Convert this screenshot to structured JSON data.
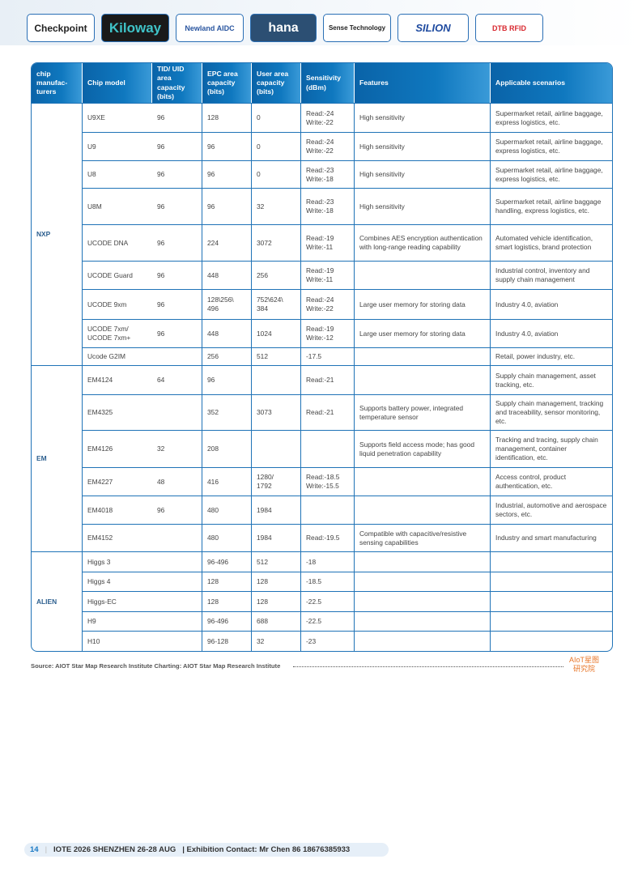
{
  "logos": [
    {
      "name": "Checkpoint",
      "bg": "#ffffff",
      "color": "#222222"
    },
    {
      "name": "Kiloway",
      "bg": "#1a1a1a",
      "color": "#3fc3c8"
    },
    {
      "name": "Newland AIDC",
      "bg": "#ffffff",
      "color": "#2a56a0"
    },
    {
      "name": "hana",
      "bg": "#2c4f73",
      "color": "#ffffff"
    },
    {
      "name": "Sense Technology",
      "bg": "#ffffff",
      "color": "#222222"
    },
    {
      "name": "SILION",
      "bg": "#ffffff",
      "color": "#1f4ba0"
    },
    {
      "name": "DTB RFID",
      "bg": "#ffffff",
      "color": "#d8282f"
    }
  ],
  "table": {
    "headers": [
      "chip manufac-turers",
      "Chip model",
      "TID/ UID area capacity (bits)",
      "EPC area capacity (bits)",
      "User area capacity (bits)",
      "Sensitivity (dBm)",
      "Features",
      "Applicable scenarios"
    ],
    "groups": [
      {
        "manufacturer": "NXP",
        "rows": [
          [
            "U9XE",
            "96",
            "128",
            "0",
            "Read:-24\nWrite:-22",
            "High sensitivity",
            "Supermarket retail, airline baggage, express logistics, etc."
          ],
          [
            "U9",
            "96",
            "96",
            "0",
            "Read:-24\nWrite:-22",
            "High sensitivity",
            "Supermarket retail, airline baggage, express logistics, etc."
          ],
          [
            "U8",
            "96",
            "96",
            "0",
            "Read:-23\nWrite:-18",
            "High sensitivity",
            "Supermarket retail, airline baggage, express logistics, etc."
          ],
          [
            "U8M",
            "96",
            "96",
            "32",
            "Read:-23\nWrite:-18",
            "High sensitivity",
            "Supermarket retail, airline baggage handling, express logistics, etc."
          ],
          [
            "UCODE DNA",
            "96",
            "224",
            "3072",
            "Read:-19\nWrite:-11",
            "Combines AES encryption authentication with long-range reading capability",
            "Automated vehicle identification, smart logistics, brand protection"
          ],
          [
            "UCODE  Guard",
            "96",
            "448",
            "256",
            "Read:-19\nWrite:-11",
            "",
            "Industrial control, inventory and supply chain management"
          ],
          [
            "UCODE 9xm",
            "96",
            "128\\256\\ 496",
            "752\\624\\ 384",
            "Read:-24\nWrite:-22",
            "Large user memory for storing data",
            "Industry 4.0, aviation"
          ],
          [
            "UCODE 7xm/\nUCODE 7xm+",
            "96",
            "448",
            "1024",
            "Read:-19\nWrite:-12",
            "Large user memory for storing data",
            "Industry 4.0, aviation"
          ],
          [
            "Ucode G2IM",
            "",
            "256",
            "512",
            "-17.5",
            "",
            "Retail, power industry, etc."
          ]
        ]
      },
      {
        "manufacturer": "EM",
        "rows": [
          [
            "EM4124",
            "64",
            "96",
            "",
            "Read:-21",
            "",
            "Supply chain management, asset tracking, etc."
          ],
          [
            "EM4325",
            "",
            "352",
            "3073",
            "Read:-21",
            "Supports battery power, integrated temperature sensor",
            "Supply chain management, tracking and traceability, sensor monitoring, etc."
          ],
          [
            "EM4126",
            "32",
            "208",
            "",
            "",
            "Supports field access mode; has good liquid penetration capability",
            "Tracking and tracing, supply chain management, container identification, etc."
          ],
          [
            "EM4227",
            "48",
            "416",
            "1280/\n1792",
            "Read:-18.5\nWrite:-15.5",
            "",
            "Access control, product authentication, etc."
          ],
          [
            "EM4018",
            "96",
            "480",
            "1984",
            "",
            "",
            "Industrial, automotive and aerospace sectors, etc."
          ],
          [
            "EM4152",
            "",
            "480",
            "1984",
            "Read:-19.5",
            "Compatible with capacitive/resistive sensing capabilities",
            "Industry and smart manufacturing"
          ]
        ]
      },
      {
        "manufacturer": "ALIEN",
        "rows": [
          [
            "Higgs 3",
            "",
            "96-496",
            "512",
            "-18",
            "",
            ""
          ],
          [
            "Higgs 4",
            "",
            "128",
            "128",
            "-18.5",
            "",
            ""
          ],
          [
            "Higgs-EC",
            "",
            "128",
            "128",
            "-22.5",
            "",
            ""
          ],
          [
            "H9",
            "",
            "96-496",
            "688",
            "-22.5",
            "",
            ""
          ],
          [
            "H10",
            "",
            "96-128",
            "32",
            "-23",
            "",
            ""
          ]
        ]
      }
    ]
  },
  "source": "Source: AIOT Star Map Research Institute  Charting: AIOT Star Map Research Institute",
  "brand": {
    "line1": "AIoT星图",
    "line2": "研究院"
  },
  "footer": {
    "page": "14",
    "event": "IOTE 2026 SHENZHEN 26-28 AUG",
    "contact": "| Exhibition Contact:  Mr Chen 86 18676385933"
  }
}
